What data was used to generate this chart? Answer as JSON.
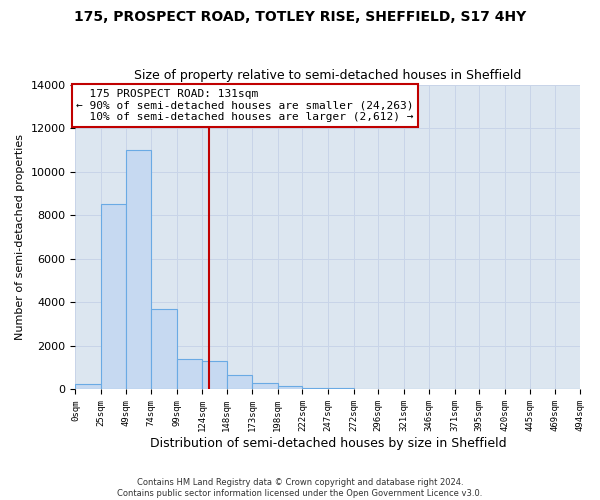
{
  "title": "175, PROSPECT ROAD, TOTLEY RISE, SHEFFIELD, S17 4HY",
  "subtitle": "Size of property relative to semi-detached houses in Sheffield",
  "xlabel": "Distribution of semi-detached houses by size in Sheffield",
  "ylabel": "Number of semi-detached properties",
  "footer_line1": "Contains HM Land Registry data © Crown copyright and database right 2024.",
  "footer_line2": "Contains public sector information licensed under the Open Government Licence v3.0.",
  "annotation_title": "175 PROSPECT ROAD: 131sqm",
  "annotation_line1": "← 90% of semi-detached houses are smaller (24,263)",
  "annotation_line2": "10% of semi-detached houses are larger (2,612) →",
  "property_size": 131,
  "bar_edges": [
    0,
    25,
    49,
    74,
    99,
    124,
    148,
    173,
    198,
    222,
    247,
    272,
    296,
    321,
    346,
    371,
    395,
    420,
    445,
    469,
    494
  ],
  "bar_heights": [
    250,
    8500,
    11000,
    3700,
    1400,
    1300,
    650,
    280,
    150,
    80,
    50,
    25,
    15,
    8,
    5,
    3,
    2,
    1,
    0,
    0
  ],
  "bar_color": "#c6d9f1",
  "bar_edge_color": "#6aaae4",
  "vline_color": "#c00000",
  "vline_x": 131,
  "annotation_box_color": "#c00000",
  "grid_color": "#c8d4e8",
  "background_color": "#dce6f0",
  "ylim": [
    0,
    14000
  ],
  "tick_labels": [
    "0sqm",
    "25sqm",
    "49sqm",
    "74sqm",
    "99sqm",
    "124sqm",
    "148sqm",
    "173sqm",
    "198sqm",
    "222sqm",
    "247sqm",
    "272sqm",
    "296sqm",
    "321sqm",
    "346sqm",
    "371sqm",
    "395sqm",
    "420sqm",
    "445sqm",
    "469sqm",
    "494sqm"
  ]
}
